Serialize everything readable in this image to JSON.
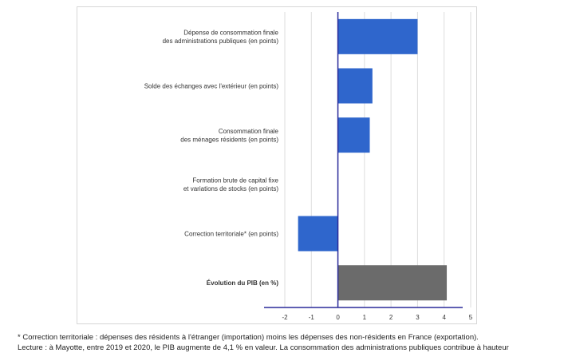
{
  "chart_data": {
    "type": "bar",
    "orientation": "horizontal",
    "categories": [
      [
        "Dépense de consommation finale",
        "des administrations publiques (en points)"
      ],
      [
        "Solde des échanges avec l'extérieur (en points)"
      ],
      [
        "Consommation finale",
        "des ménages résidents (en points)"
      ],
      [
        "Formation brute de capital fixe",
        "et variations de stocks (en points)"
      ],
      [
        "Correction territoriale* (en points)"
      ],
      [
        "Évolution du PIB (en %)"
      ]
    ],
    "values": [
      3.0,
      1.3,
      1.2,
      0.0,
      -1.5,
      4.1
    ],
    "highlight_index": 5,
    "xlim": [
      -2,
      5
    ],
    "xticks": [
      -2,
      -1,
      0,
      1,
      2,
      3,
      4,
      5
    ],
    "grid": true,
    "colors": {
      "bar": "#2f66cc",
      "highlight_bar": "#6b6b6b",
      "axis": "#2a2a9a",
      "grid": "#dddddd"
    }
  },
  "footnote": [
    "* Correction territoriale : dépenses des résidents à l'étranger (importation) moins les dépenses des non-résidents en France (exportation).",
    "Lecture : à Mayotte, entre 2019 et 2020, le PIB augmente de 4,1 % en valeur. La consommation des administrations publiques contribue à hauteur"
  ]
}
